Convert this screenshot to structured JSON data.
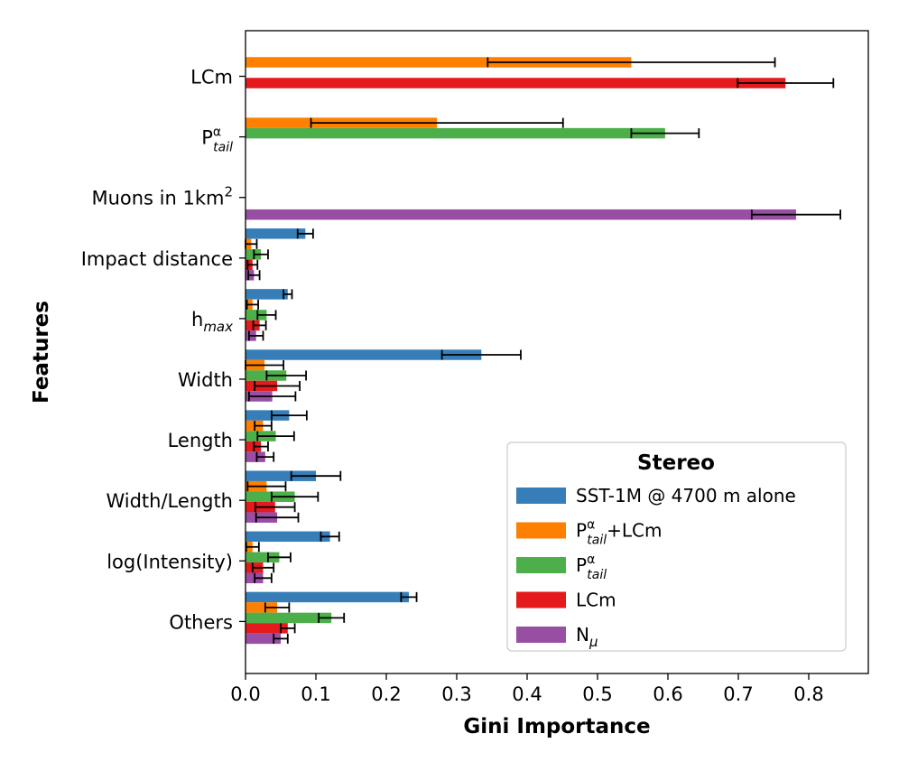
{
  "chart_data": {
    "type": "bar",
    "orientation": "horizontal",
    "xlabel": "Gini Importance",
    "ylabel": "Features",
    "xlim": [
      0,
      0.88
    ],
    "xticks": [
      "0.0",
      "0.1",
      "0.2",
      "0.3",
      "0.4",
      "0.5",
      "0.6",
      "0.7",
      "0.8"
    ],
    "categories": [
      {
        "base": "LCm",
        "sub": "",
        "sup": ""
      },
      {
        "base": "P",
        "sub": "tail",
        "sup": "α"
      },
      {
        "base": "Muons in 1km",
        "sub": "",
        "sup": "2"
      },
      {
        "base": "Impact distance",
        "sub": "",
        "sup": ""
      },
      {
        "base": "h",
        "sub": "max",
        "sup": ""
      },
      {
        "base": "Width",
        "sub": "",
        "sup": ""
      },
      {
        "base": "Length",
        "sub": "",
        "sup": ""
      },
      {
        "base": "Width/Length",
        "sub": "",
        "sup": ""
      },
      {
        "base": "log(Intensity)",
        "sub": "",
        "sup": ""
      },
      {
        "base": "Others",
        "sub": "",
        "sup": ""
      }
    ],
    "legend": {
      "title": "Stereo",
      "position": "lower-right"
    },
    "series": [
      {
        "name": "SST-1M @ 4700 m alone",
        "label": {
          "base": "SST-1M @ 4700 m alone",
          "sub": "",
          "sup": ""
        },
        "color": "#377eb8",
        "values": [
          null,
          null,
          null,
          0.085,
          0.06,
          0.335,
          0.062,
          0.1,
          0.12,
          0.232
        ],
        "errors": [
          null,
          null,
          null,
          0.011,
          0.006,
          0.056,
          0.025,
          0.035,
          0.013,
          0.011
        ]
      },
      {
        "name": "P_tail^α+LCm",
        "label": {
          "base": "P",
          "sub": "tail",
          "sup": "α",
          "suffix": "+LCm"
        },
        "color": "#ff7f00",
        "values": [
          0.548,
          0.272,
          null,
          0.008,
          0.01,
          0.027,
          0.025,
          0.03,
          0.01,
          0.045
        ],
        "errors": [
          0.204,
          0.179,
          null,
          0.008,
          0.008,
          0.027,
          0.012,
          0.027,
          0.009,
          0.017
        ]
      },
      {
        "name": "P_tail^α",
        "label": {
          "base": "P",
          "sub": "tail",
          "sup": "α"
        },
        "color": "#4daf4a",
        "values": [
          null,
          0.596,
          null,
          0.022,
          0.03,
          0.058,
          0.043,
          0.07,
          0.048,
          0.122
        ],
        "errors": [
          null,
          0.048,
          null,
          0.01,
          0.013,
          0.028,
          0.026,
          0.033,
          0.016,
          0.018
        ]
      },
      {
        "name": "LCm",
        "label": {
          "base": "LCm",
          "sub": "",
          "sup": ""
        },
        "color": "#e41a1c",
        "values": [
          0.767,
          null,
          null,
          0.01,
          0.02,
          0.045,
          0.022,
          0.042,
          0.025,
          0.06
        ],
        "errors": [
          0.068,
          null,
          null,
          0.007,
          0.009,
          0.032,
          0.01,
          0.028,
          0.015,
          0.01
        ]
      },
      {
        "name": "N_μ",
        "label": {
          "base": "N",
          "sub": "μ",
          "sup": ""
        },
        "color": "#984ea3",
        "values": [
          null,
          null,
          0.782,
          0.012,
          0.015,
          0.038,
          0.028,
          0.045,
          0.025,
          0.05
        ],
        "errors": [
          null,
          null,
          0.063,
          0.008,
          0.01,
          0.033,
          0.012,
          0.03,
          0.012,
          0.01
        ]
      }
    ]
  }
}
